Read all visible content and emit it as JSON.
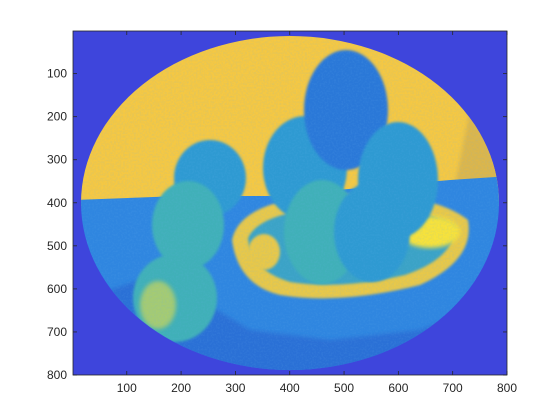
{
  "chart_data": {
    "type": "heatmap",
    "title": "",
    "xlabel": "",
    "ylabel": "",
    "xlim": [
      1,
      800
    ],
    "ylim": [
      800,
      1
    ],
    "y_direction": "reverse",
    "grid": false,
    "x_ticks": [
      100,
      200,
      300,
      400,
      500,
      600,
      700,
      800
    ],
    "y_ticks": [
      100,
      200,
      300,
      400,
      500,
      600,
      700,
      800
    ],
    "x_tick_labels": [
      "100",
      "200",
      "300",
      "400",
      "500",
      "600",
      "700",
      "800"
    ],
    "y_tick_labels": [
      "100",
      "200",
      "300",
      "400",
      "500",
      "600",
      "700",
      "800"
    ],
    "colormap": "parula",
    "colors": {
      "background": "#3e45dc",
      "wall": "#f5c843",
      "wall_shadow": "#dcb64c",
      "table": "#2f86e0",
      "table_dark": "#2a6fd6",
      "fruit": "#2e9ad2",
      "fruit_light": "#3fb0b8",
      "fruit_dark": "#2c78d8",
      "bowl": "#e8c84a",
      "bowl_inner": "#3aa3c6",
      "highlight": "#f7e23a",
      "axis": "#262626"
    }
  }
}
